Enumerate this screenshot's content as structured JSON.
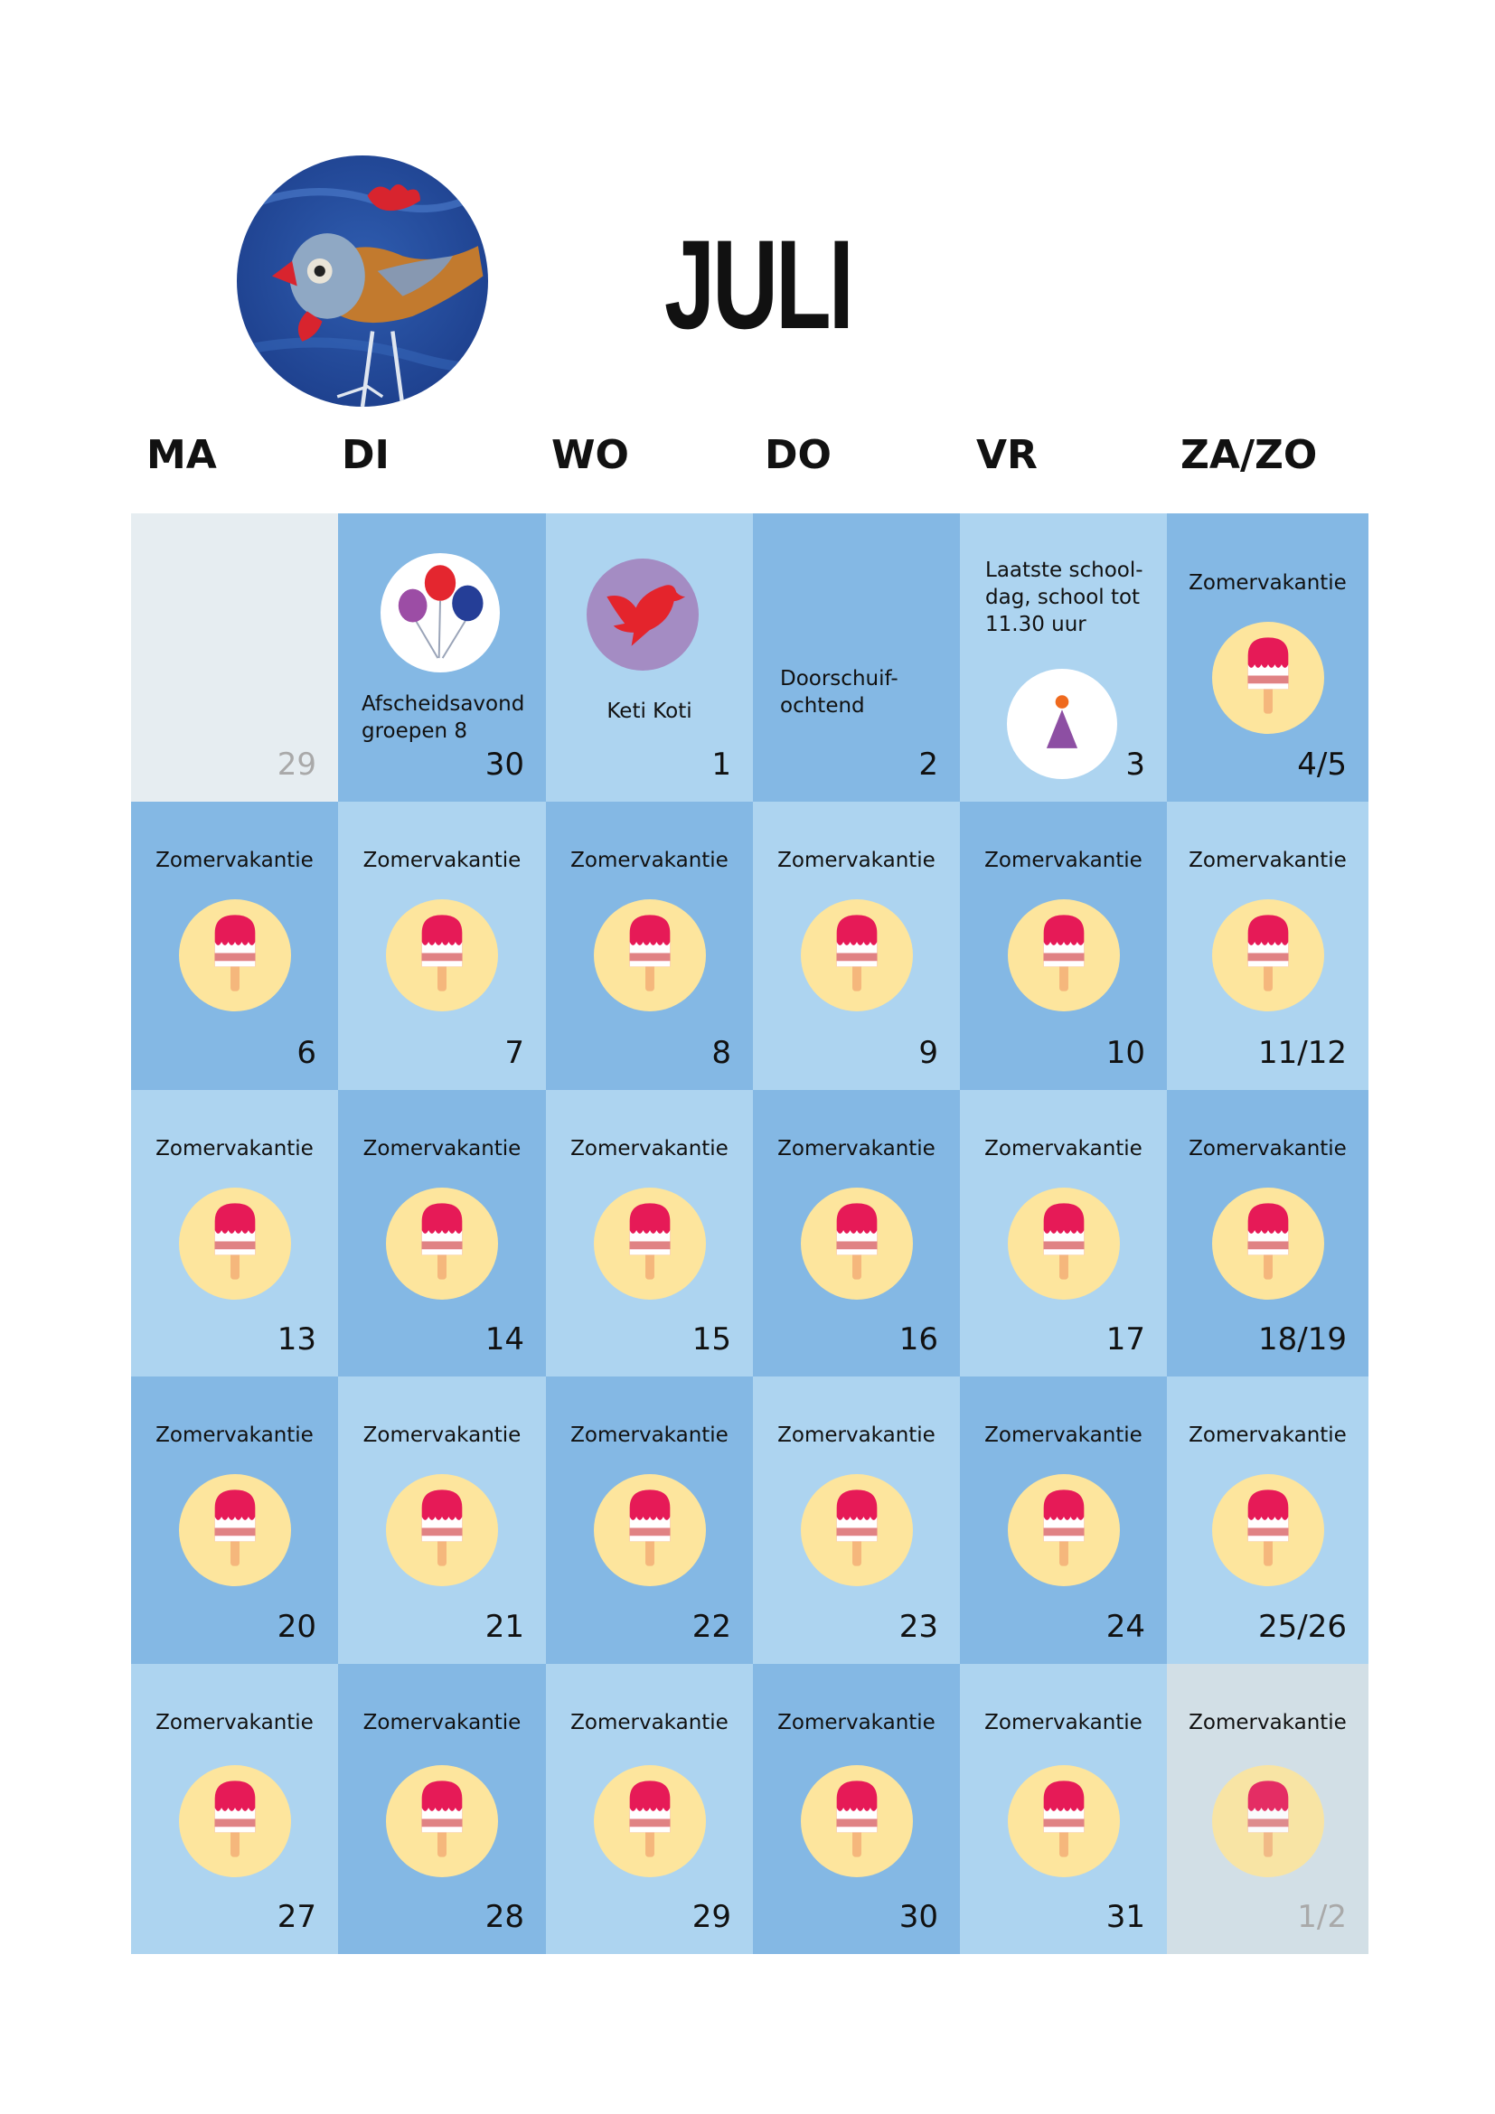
{
  "month": "JULI",
  "header_image": "painted-bird-illustration",
  "weekdays": [
    "MA",
    "DI",
    "WO",
    "DO",
    "VR",
    "ZA/ZO"
  ],
  "colors": {
    "cell_dark": "#84b8e4",
    "cell_light": "#add4f0",
    "cell_inactive": "#e6edf1",
    "cell_inactive_end": "#d2dfe6",
    "popsicle_circle": "#fde59d",
    "popsicle_red": "#e61a57",
    "popsicle_stripe": "#e08284",
    "popsicle_stick": "#f5b77c"
  },
  "weeks": [
    [
      {
        "day": "29",
        "tone": "inactive",
        "muted": true
      },
      {
        "day": "30",
        "tone": "dark",
        "label": "Afscheidsavond groepen 8",
        "icon": "balloons-icon"
      },
      {
        "day": "1",
        "tone": "light",
        "label": "Keti Koti",
        "icon": "dove-icon"
      },
      {
        "day": "2",
        "tone": "dark",
        "label": "Doorschuif-ochtend"
      },
      {
        "day": "3",
        "tone": "light",
        "label": "Laatste school-dag, school tot 11.30 uur",
        "icon": "party-hat-icon"
      },
      {
        "day": "4/5",
        "tone": "dark",
        "label": "Zomervakantie",
        "icon": "popsicle-icon"
      }
    ],
    [
      {
        "day": "6",
        "tone": "dark",
        "label": "Zomervakantie",
        "icon": "popsicle-icon"
      },
      {
        "day": "7",
        "tone": "light",
        "label": "Zomervakantie",
        "icon": "popsicle-icon"
      },
      {
        "day": "8",
        "tone": "dark",
        "label": "Zomervakantie",
        "icon": "popsicle-icon"
      },
      {
        "day": "9",
        "tone": "light",
        "label": "Zomervakantie",
        "icon": "popsicle-icon"
      },
      {
        "day": "10",
        "tone": "dark",
        "label": "Zomervakantie",
        "icon": "popsicle-icon"
      },
      {
        "day": "11/12",
        "tone": "light",
        "label": "Zomervakantie",
        "icon": "popsicle-icon"
      }
    ],
    [
      {
        "day": "13",
        "tone": "light",
        "label": "Zomervakantie",
        "icon": "popsicle-icon"
      },
      {
        "day": "14",
        "tone": "dark",
        "label": "Zomervakantie",
        "icon": "popsicle-icon"
      },
      {
        "day": "15",
        "tone": "light",
        "label": "Zomervakantie",
        "icon": "popsicle-icon"
      },
      {
        "day": "16",
        "tone": "dark",
        "label": "Zomervakantie",
        "icon": "popsicle-icon"
      },
      {
        "day": "17",
        "tone": "light",
        "label": "Zomervakantie",
        "icon": "popsicle-icon"
      },
      {
        "day": "18/19",
        "tone": "dark",
        "label": "Zomervakantie",
        "icon": "popsicle-icon"
      }
    ],
    [
      {
        "day": "20",
        "tone": "dark",
        "label": "Zomervakantie",
        "icon": "popsicle-icon"
      },
      {
        "day": "21",
        "tone": "light",
        "label": "Zomervakantie",
        "icon": "popsicle-icon"
      },
      {
        "day": "22",
        "tone": "dark",
        "label": "Zomervakantie",
        "icon": "popsicle-icon"
      },
      {
        "day": "23",
        "tone": "light",
        "label": "Zomervakantie",
        "icon": "popsicle-icon"
      },
      {
        "day": "24",
        "tone": "dark",
        "label": "Zomervakantie",
        "icon": "popsicle-icon"
      },
      {
        "day": "25/26",
        "tone": "light",
        "label": "Zomervakantie",
        "icon": "popsicle-icon"
      }
    ],
    [
      {
        "day": "27",
        "tone": "light",
        "label": "Zomervakantie",
        "icon": "popsicle-icon"
      },
      {
        "day": "28",
        "tone": "dark",
        "label": "Zomervakantie",
        "icon": "popsicle-icon"
      },
      {
        "day": "29",
        "tone": "light",
        "label": "Zomervakantie",
        "icon": "popsicle-icon"
      },
      {
        "day": "30",
        "tone": "dark",
        "label": "Zomervakantie",
        "icon": "popsicle-icon"
      },
      {
        "day": "31",
        "tone": "light",
        "label": "Zomervakantie",
        "icon": "popsicle-icon"
      },
      {
        "day": "1/2",
        "tone": "inactive-end",
        "label": "Zomervakantie",
        "icon": "popsicle-icon",
        "muted": true
      }
    ]
  ]
}
